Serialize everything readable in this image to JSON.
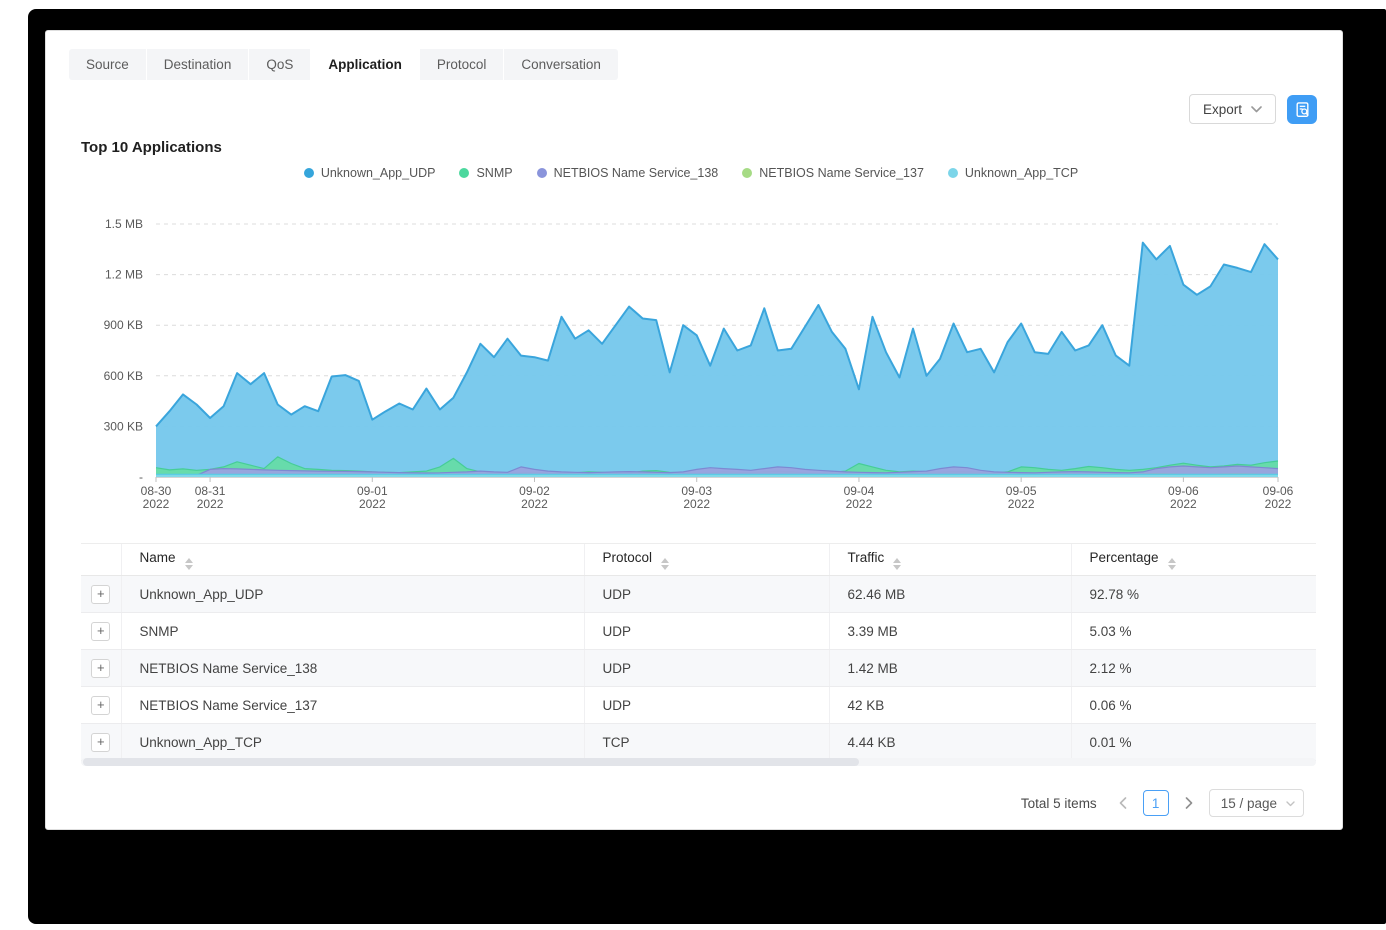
{
  "tabs": {
    "active": "Application",
    "items": [
      {
        "label": "Source"
      },
      {
        "label": "Destination"
      },
      {
        "label": "QoS"
      },
      {
        "label": "Application"
      },
      {
        "label": "Protocol"
      },
      {
        "label": "Conversation"
      }
    ]
  },
  "toolbar": {
    "export_label": "Export"
  },
  "chart": {
    "title": "Top 10 Applications"
  },
  "chart_data": {
    "type": "area",
    "stacked": true,
    "title": "Top 10 Applications",
    "unit": "KB",
    "ylim": [
      0,
      1500
    ],
    "grid": "horizontal-dashed",
    "legend_position": "top",
    "y_ticks": [
      {
        "label": "1.5 MB",
        "value": 1500
      },
      {
        "label": "1.2 MB",
        "value": 1200
      },
      {
        "label": "900 KB",
        "value": 900
      },
      {
        "label": "600 KB",
        "value": 600
      },
      {
        "label": "300 KB",
        "value": 300
      },
      {
        "label": "-",
        "value": 0
      }
    ],
    "x_ticks": [
      {
        "index": 0,
        "label": "08-30",
        "year": "2022"
      },
      {
        "index": 4,
        "label": "08-31",
        "year": "2022"
      },
      {
        "index": 16,
        "label": "09-01",
        "year": "2022"
      },
      {
        "index": 28,
        "label": "09-02",
        "year": "2022"
      },
      {
        "index": 40,
        "label": "09-03",
        "year": "2022"
      },
      {
        "index": 52,
        "label": "09-04",
        "year": "2022"
      },
      {
        "index": 64,
        "label": "09-05",
        "year": "2022"
      },
      {
        "index": 76,
        "label": "09-06",
        "year": "2022"
      },
      {
        "index": 83,
        "label": "09-06",
        "year": "2022"
      }
    ],
    "series": [
      {
        "name": "Unknown_App_UDP",
        "color": "#76c8ec",
        "stroke": "#3aa5dc",
        "stroke_width": 2,
        "values": [
          300,
          390,
          490,
          430,
          350,
          420,
          616,
          550,
          616,
          430,
          370,
          420,
          390,
          596,
          604,
          570,
          340,
          390,
          436,
          400,
          524,
          400,
          470,
          620,
          790,
          710,
          820,
          720,
          710,
          690,
          950,
          820,
          870,
          790,
          900,
          1010,
          940,
          930,
          620,
          900,
          840,
          660,
          880,
          750,
          780,
          1000,
          750,
          760,
          890,
          1020,
          860,
          760,
          520,
          950,
          740,
          590,
          880,
          600,
          700,
          910,
          740,
          760,
          620,
          800,
          910,
          740,
          730,
          860,
          750,
          780,
          900,
          720,
          660,
          1390,
          1290,
          1370,
          1140,
          1080,
          1130,
          1260,
          1240,
          1215,
          1380,
          1290
        ]
      },
      {
        "name": "SNMP",
        "color": "#66dca8",
        "stroke": "#46cd96",
        "stroke_width": 1.2,
        "values": [
          55,
          42,
          48,
          40,
          45,
          60,
          90,
          70,
          50,
          120,
          80,
          50,
          45,
          40,
          38,
          35,
          30,
          28,
          26,
          30,
          35,
          60,
          110,
          50,
          30,
          25,
          22,
          25,
          28,
          24,
          22,
          25,
          30,
          28,
          25,
          22,
          35,
          38,
          28,
          25,
          22,
          25,
          30,
          28,
          25,
          30,
          35,
          30,
          25,
          22,
          28,
          35,
          80,
          60,
          40,
          30,
          35,
          30,
          28,
          32,
          30,
          28,
          25,
          30,
          60,
          55,
          45,
          40,
          50,
          62,
          55,
          45,
          40,
          45,
          55,
          70,
          82,
          70,
          60,
          65,
          75,
          70,
          85,
          95
        ]
      },
      {
        "name": "NETBIOS Name Service_138",
        "color": "#99a3df",
        "stroke": "#7d89d2",
        "stroke_width": 1.2,
        "values": [
          5,
          5,
          8,
          10,
          45,
          50,
          48,
          45,
          42,
          40,
          38,
          36,
          35,
          34,
          33,
          32,
          30,
          28,
          26,
          25,
          24,
          25,
          28,
          30,
          35,
          30,
          28,
          60,
          45,
          35,
          30,
          28,
          26,
          28,
          30,
          32,
          30,
          28,
          26,
          30,
          45,
          55,
          50,
          45,
          40,
          50,
          60,
          55,
          45,
          40,
          35,
          30,
          28,
          26,
          25,
          28,
          32,
          35,
          50,
          60,
          55,
          40,
          30,
          28,
          26,
          25,
          28,
          30,
          32,
          30,
          28,
          26,
          25,
          30,
          50,
          60,
          65,
          60,
          55,
          60,
          65,
          60,
          55,
          50
        ]
      },
      {
        "name": "NETBIOS Name Service_137",
        "color": "#abde8e",
        "stroke": "#97d072",
        "stroke_width": 1.2,
        "values": [
          8,
          8,
          9,
          10,
          10,
          9,
          8,
          8,
          9,
          10,
          9,
          8,
          8,
          9,
          9,
          8,
          8,
          9,
          10,
          9,
          8,
          8,
          9,
          10,
          9,
          8,
          8,
          9,
          10,
          9,
          8,
          8,
          9,
          10,
          9,
          8,
          8,
          9,
          10,
          9,
          8,
          8,
          9,
          10,
          9,
          8,
          8,
          9,
          10,
          9,
          8,
          8,
          9,
          10,
          9,
          8,
          8,
          9,
          10,
          9,
          12,
          13,
          14,
          13,
          12,
          13,
          14,
          15,
          14,
          13,
          12,
          13,
          14,
          15,
          16,
          15,
          14,
          13,
          14,
          15,
          16,
          15,
          14,
          13
        ]
      },
      {
        "name": "Unknown_App_TCP",
        "color": "#7fd9ec",
        "stroke": "#58cae4",
        "stroke_width": 1.2,
        "values": [
          16,
          16,
          16,
          16,
          16,
          16,
          16,
          16,
          16,
          16,
          16,
          16,
          16,
          16,
          16,
          16,
          16,
          16,
          16,
          16,
          16,
          16,
          16,
          16,
          16,
          16,
          16,
          16,
          16,
          16,
          16,
          16,
          16,
          16,
          16,
          16,
          16,
          16,
          16,
          16,
          16,
          16,
          16,
          16,
          16,
          16,
          16,
          16,
          16,
          16,
          16,
          16,
          16,
          16,
          16,
          16,
          16,
          16,
          16,
          16,
          16,
          16,
          16,
          16,
          16,
          16,
          16,
          16,
          16,
          16,
          16,
          16,
          16,
          16,
          16,
          16,
          16,
          16,
          16,
          16,
          16,
          16,
          16,
          16
        ]
      }
    ],
    "legend_colors": [
      "#35a5db",
      "#4cd89e",
      "#8a94db",
      "#a6db85",
      "#7cd5e9"
    ]
  },
  "table": {
    "expand_label": "+",
    "columns": [
      {
        "key": "name",
        "label": "Name",
        "sortable": true
      },
      {
        "key": "protocol",
        "label": "Protocol",
        "sortable": true
      },
      {
        "key": "traffic",
        "label": "Traffic",
        "sortable": true
      },
      {
        "key": "percentage",
        "label": "Percentage",
        "sortable": true
      }
    ],
    "rows": [
      {
        "name": "Unknown_App_UDP",
        "protocol": "UDP",
        "traffic": "62.46 MB",
        "percentage": "92.78 %"
      },
      {
        "name": "SNMP",
        "protocol": "UDP",
        "traffic": "3.39 MB",
        "percentage": "5.03 %"
      },
      {
        "name": "NETBIOS Name Service_138",
        "protocol": "UDP",
        "traffic": "1.42 MB",
        "percentage": "2.12 %"
      },
      {
        "name": "NETBIOS Name Service_137",
        "protocol": "UDP",
        "traffic": "42 KB",
        "percentage": "0.06 %"
      },
      {
        "name": "Unknown_App_TCP",
        "protocol": "TCP",
        "traffic": "4.44 KB",
        "percentage": "0.01 %"
      }
    ]
  },
  "pagination": {
    "total_text": "Total 5 items",
    "current_page": "1",
    "page_size_label": "15 / page"
  }
}
